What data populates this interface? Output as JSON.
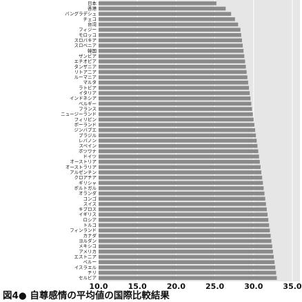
{
  "chart_data": {
    "type": "hbar",
    "title": "図4● 自尊感情の平均値の国際比較結果",
    "categories": [
      "日本",
      "香港",
      "バングラデシュ",
      "チェコ",
      "台湾",
      "フィジー",
      "モロッコ",
      "スロバキア",
      "スロベニア",
      "韓国",
      "ザンビア",
      "エチオピア",
      "タンザニア",
      "リトアニア",
      "ルーマニア",
      "マルタ",
      "ラトビア",
      "イタリア",
      "インドネシア",
      "ベルギー",
      "フランス",
      "ニュージーランド",
      "フィリピン",
      "ポーランド",
      "ジンバブエ",
      "ブラジル",
      "レバノン",
      "スペイン",
      "ボツワナ",
      "ドイツ",
      "オーストリア",
      "オーストラリア",
      "アルゼンチン",
      "クロアチア",
      "ギリシャ",
      "ポルトガル",
      "オランダ",
      "コンゴ",
      "スイス",
      "キプロス",
      "イギリス",
      "ロシア",
      "トルコ",
      "フィンランド",
      "カナダ",
      "ヨルダン",
      "メキシコ",
      "アメリカ",
      "エストニア",
      "ペルー",
      "イスラエル",
      "チリ",
      "セルビア"
    ],
    "values": [
      25.2,
      26.4,
      27.1,
      27.6,
      28.0,
      28.3,
      28.4,
      28.5,
      28.6,
      28.7,
      28.8,
      28.9,
      29.0,
      29.1,
      29.2,
      29.3,
      29.4,
      29.5,
      29.6,
      29.7,
      29.8,
      29.9,
      30.0,
      30.1,
      30.2,
      30.3,
      30.4,
      30.5,
      30.6,
      30.7,
      30.8,
      30.9,
      31.0,
      31.1,
      31.2,
      31.3,
      31.4,
      31.5,
      31.6,
      31.7,
      31.8,
      31.9,
      32.0,
      32.1,
      32.2,
      32.3,
      32.4,
      32.5,
      32.6,
      32.7,
      32.8,
      32.9,
      33.0
    ],
    "color": "#8a8a8a",
    "xlim": [
      10,
      35
    ],
    "xticks": [
      {
        "value": 10,
        "label": "10.0"
      },
      {
        "value": 15,
        "label": "15.0"
      },
      {
        "value": 20,
        "label": "20.0"
      },
      {
        "value": 25,
        "label": "25.0"
      },
      {
        "value": 30,
        "label": "30.0"
      },
      {
        "value": 35,
        "label": "35.0"
      }
    ],
    "grid": true
  }
}
